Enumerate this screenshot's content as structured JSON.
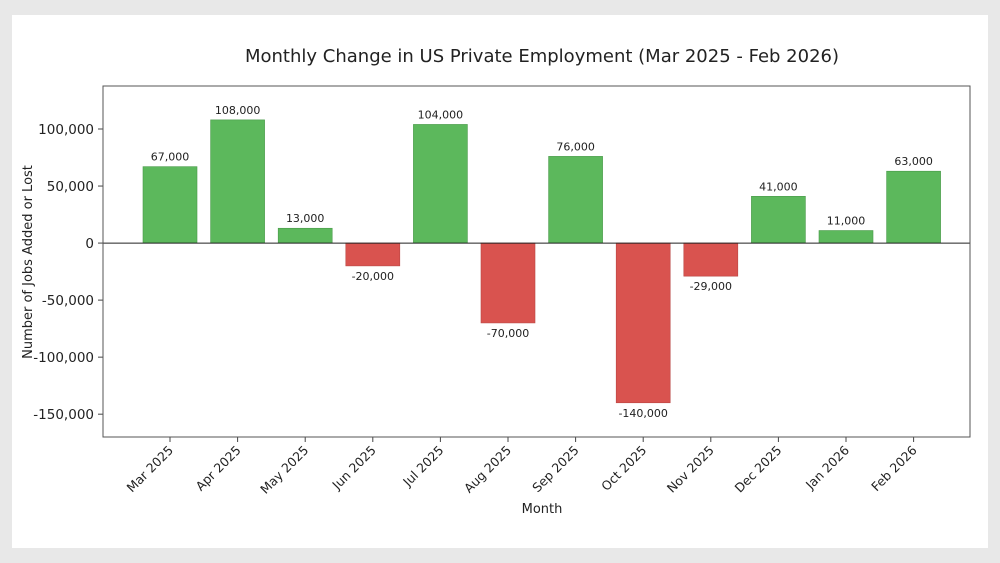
{
  "chart_data": {
    "type": "bar",
    "title": "Monthly Change in US Private Employment (Mar 2025 - Feb 2026)",
    "xlabel": "Month",
    "ylabel": "Number of Jobs Added or Lost",
    "categories": [
      "Mar 2025",
      "Apr 2025",
      "May 2025",
      "Jun 2025",
      "Jul 2025",
      "Aug 2025",
      "Sep 2025",
      "Oct 2025",
      "Nov 2025",
      "Dec 2025",
      "Jan 2026",
      "Feb 2026"
    ],
    "values": [
      67000,
      108000,
      13000,
      -20000,
      104000,
      -70000,
      76000,
      -140000,
      -29000,
      41000,
      11000,
      63000
    ],
    "data_labels": [
      "67,000",
      "108,000",
      "13,000",
      "-20,000",
      "104,000",
      "-70,000",
      "76,000",
      "-140,000",
      "-29,000",
      "41,000",
      "11,000",
      "63,000"
    ],
    "ylim": [
      -170000,
      137700
    ],
    "yticks": [
      -150000,
      -100000,
      -50000,
      0,
      50000,
      100000
    ],
    "ytick_labels": [
      "-150,000",
      "-100,000",
      "-50,000",
      "0",
      "50,000",
      "100,000"
    ],
    "grid": false,
    "colors": {
      "positive": "#5cb85c",
      "negative": "#d9534f"
    }
  }
}
